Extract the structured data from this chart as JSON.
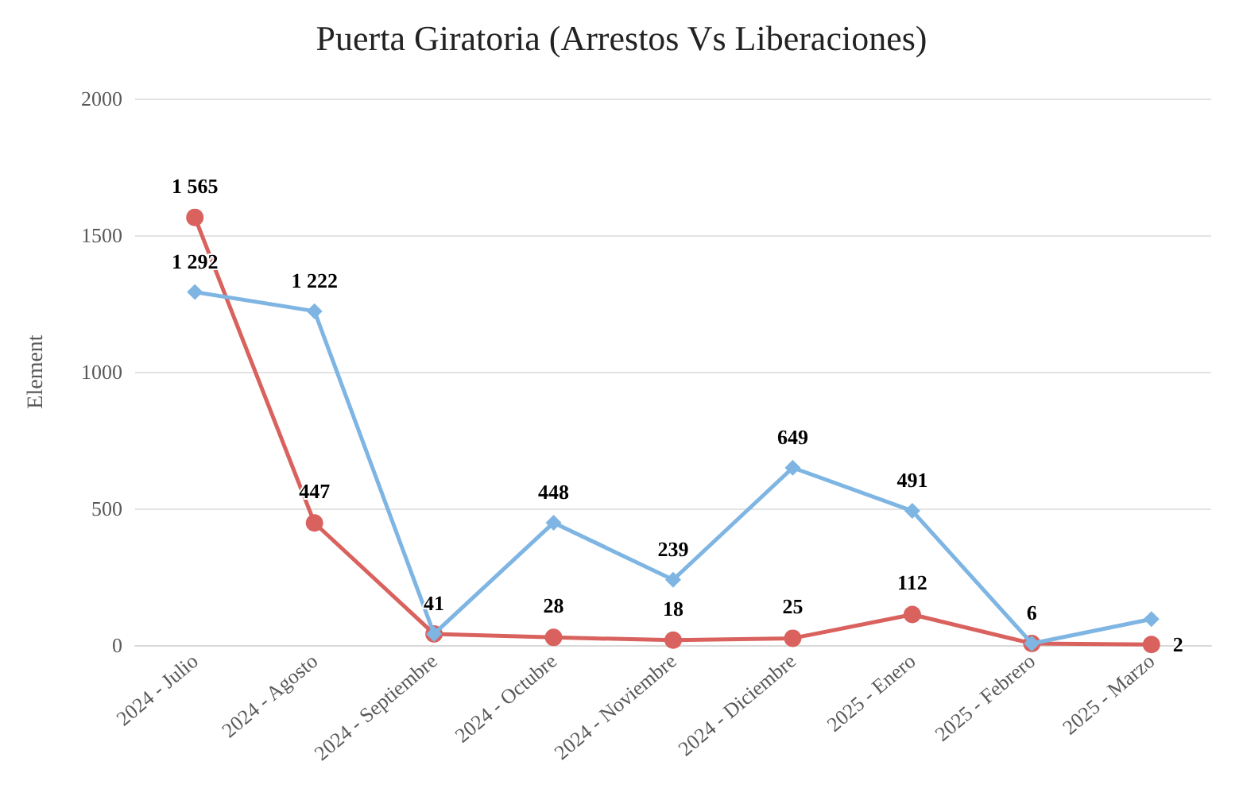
{
  "chart_data": {
    "type": "line",
    "title": "Puerta Giratoria (Arrestos Vs Liberaciones)",
    "ylabel": "Element",
    "categories": [
      "2024 - Julio",
      "2024 - Agosto",
      "2024 - Septiembre",
      "2024 - Octubre",
      "2024 - Noviembre",
      "2024 - Diciembre",
      "2025 - Enero",
      "2025 - Febrero",
      "2025 - Marzo"
    ],
    "series": [
      {
        "color": "#7eb5e3",
        "marker": "diamond",
        "values": [
          1292,
          1222,
          41,
          448,
          239,
          649,
          491,
          6,
          95
        ],
        "value_labels": [
          "1 292",
          "1 222",
          "41",
          "448",
          "239",
          "649",
          "491",
          "6",
          null
        ]
      },
      {
        "color": "#d9625e",
        "marker": "circle",
        "values": [
          1565,
          447,
          41,
          28,
          18,
          25,
          112,
          6,
          2
        ],
        "value_labels": [
          "1 565",
          "447",
          null,
          "28",
          "18",
          "25",
          "112",
          null,
          "2"
        ]
      }
    ],
    "ylim": [
      0,
      2000
    ],
    "yticks": [
      0,
      500,
      1000,
      1500,
      2000
    ],
    "grid": "y"
  }
}
